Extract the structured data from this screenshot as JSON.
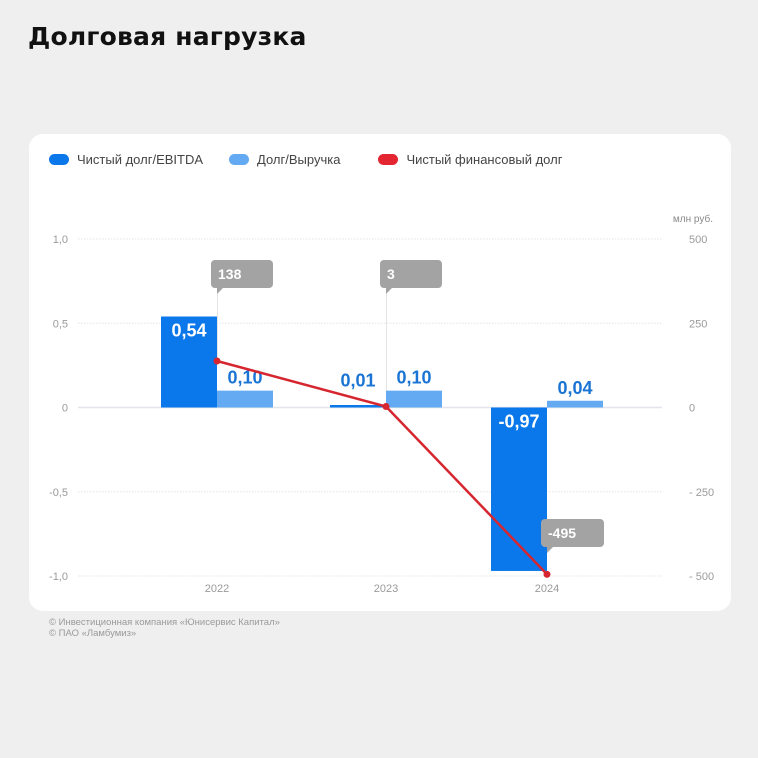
{
  "title": "Долговая нагрузка",
  "legend": [
    {
      "label": "Чистый долг/EBITDA",
      "color": "#0a77ea"
    },
    {
      "label": "Долг/Выручка",
      "color": "#63aaf2"
    },
    {
      "label": "Чистый финансовый долг",
      "color": "#e32631"
    }
  ],
  "right_axis_unit": "млн руб.",
  "footer": {
    "line1": "© Инвестиционная компания «Юнисервис Капитал»",
    "line2": "© ПАО «Ламбумиз»"
  },
  "chart_data": {
    "type": "bar",
    "title": "Долговая нагрузка",
    "categories": [
      "2022",
      "2023",
      "2024"
    ],
    "series": [
      {
        "name": "Чистый долг/EBITDA",
        "type": "bar",
        "axis": "left",
        "values": [
          0.54,
          0.01,
          -0.97
        ],
        "labels": [
          "0,54",
          "0,01",
          "-0,97"
        ],
        "color": "#0a77ea"
      },
      {
        "name": "Долг/Выручка",
        "type": "bar",
        "axis": "left",
        "values": [
          0.1,
          0.1,
          0.04
        ],
        "labels": [
          "0,10",
          "0,10",
          "0,04"
        ],
        "color": "#63aaf2"
      },
      {
        "name": "Чистый финансовый долг",
        "type": "line",
        "axis": "right",
        "values": [
          138,
          3,
          -495
        ],
        "labels": [
          "138",
          "3",
          "-495"
        ],
        "color": "#e32631"
      }
    ],
    "left_axis": {
      "ylim": [
        -1.0,
        1.0
      ],
      "ticks": [
        "1,0",
        "0,5",
        "0",
        "-0,5",
        "-1,0"
      ]
    },
    "right_axis": {
      "ylim": [
        -500,
        500
      ],
      "ticks": [
        "500",
        "250",
        "0",
        "- 250",
        "- 500"
      ],
      "unit": "млн руб."
    },
    "grid": true,
    "legend_position": "top-left"
  }
}
